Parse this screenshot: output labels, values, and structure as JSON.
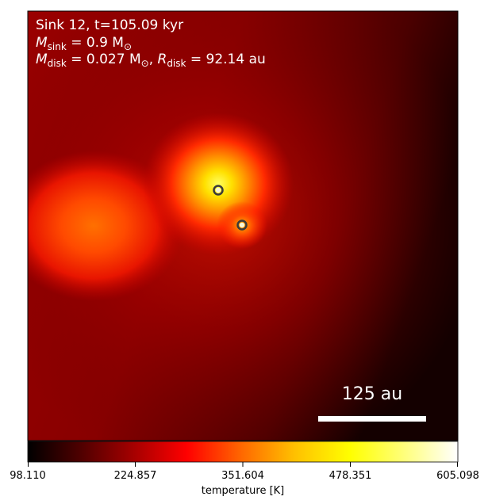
{
  "header": {
    "line1": "Sink 12, t=105.09 kyr",
    "line2_sym": "M",
    "line2_sub": "sink",
    "line2_val": " = 0.9 M",
    "line2_odot": "⊙",
    "line3_sym": "M",
    "line3_sub": "disk",
    "line3_val": " = 0.027 M",
    "line3_odot": "⊙",
    "line3_sep": ", ",
    "line3_r_sym": "R",
    "line3_r_sub": "disk",
    "line3_r_val": " = 92.14 au"
  },
  "scalebar": {
    "label": "125 au",
    "length_au": 125
  },
  "colorbar": {
    "label": "temperature [K]",
    "min": 98.11,
    "max": 605.098,
    "ticks": [
      "98.110",
      "224.857",
      "351.604",
      "478.351",
      "605.098"
    ],
    "colormap": "hot",
    "stops": [
      "#000000",
      "#4d0000",
      "#a80000",
      "#ff0000",
      "#ff6a00",
      "#ffc000",
      "#ffff00",
      "#ffff80",
      "#ffffff"
    ]
  },
  "sinks": [
    {
      "name": "sink-primary",
      "ring_color": "#3a3a3a",
      "core_color": "#f6f6d8"
    },
    {
      "name": "sink-secondary",
      "ring_color": "#3a3a3a",
      "core_color": "#f6f6d8"
    }
  ]
}
